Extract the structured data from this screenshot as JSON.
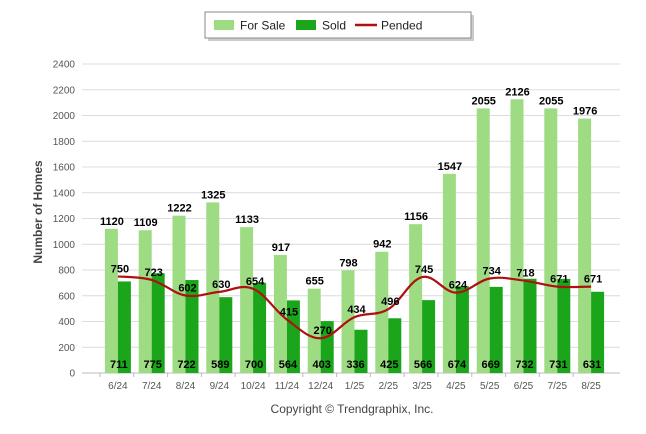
{
  "chart_data": {
    "type": "bar",
    "categories": [
      "6/24",
      "7/24",
      "8/24",
      "9/24",
      "10/24",
      "11/24",
      "12/24",
      "1/25",
      "2/25",
      "3/25",
      "4/25",
      "5/25",
      "6/25",
      "7/25",
      "8/25"
    ],
    "series": [
      {
        "name": "For Sale",
        "type": "bar",
        "color": "#9edc84",
        "values": [
          1120,
          1109,
          1222,
          1325,
          1133,
          917,
          655,
          798,
          942,
          1156,
          1547,
          2055,
          2126,
          2055,
          1976
        ]
      },
      {
        "name": "Sold",
        "type": "bar",
        "color": "#1aa51a",
        "values": [
          711,
          775,
          722,
          589,
          700,
          564,
          403,
          336,
          425,
          566,
          674,
          669,
          732,
          731,
          631
        ]
      },
      {
        "name": "Pended",
        "type": "line",
        "color": "#b01010",
        "values": [
          750,
          723,
          602,
          630,
          654,
          415,
          270,
          434,
          496,
          745,
          624,
          734,
          718,
          671,
          671
        ]
      }
    ],
    "ylabel": "Number of Homes",
    "xlabel": "",
    "ylim": [
      0,
      2400
    ],
    "yticks": [
      0,
      200,
      400,
      600,
      800,
      1000,
      1200,
      1400,
      1600,
      1800,
      2000,
      2200,
      2400
    ],
    "grid": true,
    "legend": "top-center"
  },
  "footer": {
    "copyright": "Copyright © Trendgraphix, Inc."
  }
}
